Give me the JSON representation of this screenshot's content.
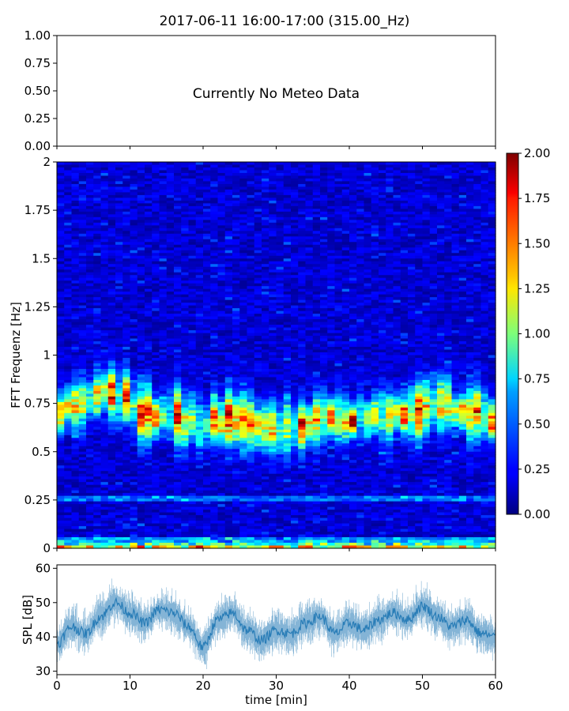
{
  "chart_data": [
    {
      "type": "text",
      "panel": "meteo",
      "title": "2017-06-11 16:00-17:00 (315.00_Hz)",
      "message": "Currently No Meteo Data",
      "ylim": [
        0,
        1
      ],
      "yticks": [
        "0.00",
        "0.25",
        "0.50",
        "0.75",
        "1.00"
      ]
    },
    {
      "type": "heatmap",
      "panel": "spectrogram",
      "ylabel": "FFT Frequenz [Hz]",
      "xlim": [
        0,
        60
      ],
      "ylim": [
        0,
        2
      ],
      "yticks": [
        "0",
        "0.25",
        "0.5",
        "0.75",
        "1",
        "1.25",
        "1.5",
        "1.75",
        "2"
      ],
      "colormap": "jet",
      "colorbar": {
        "vmin": 0,
        "vmax": 2,
        "ticks": [
          "0.00",
          "0.25",
          "0.50",
          "0.75",
          "1.00",
          "1.25",
          "1.50",
          "1.75",
          "2.00"
        ]
      },
      "band_ridge": [
        {
          "t": 0,
          "f": 0.68
        },
        {
          "t": 3,
          "f": 0.76
        },
        {
          "t": 6,
          "f": 0.8
        },
        {
          "t": 9,
          "f": 0.78
        },
        {
          "t": 12,
          "f": 0.7
        },
        {
          "t": 16,
          "f": 0.68
        },
        {
          "t": 20,
          "f": 0.65
        },
        {
          "t": 24,
          "f": 0.66
        },
        {
          "t": 28,
          "f": 0.62
        },
        {
          "t": 32,
          "f": 0.62
        },
        {
          "t": 36,
          "f": 0.66
        },
        {
          "t": 40,
          "f": 0.67
        },
        {
          "t": 44,
          "f": 0.68
        },
        {
          "t": 48,
          "f": 0.7
        },
        {
          "t": 52,
          "f": 0.76
        },
        {
          "t": 56,
          "f": 0.7
        },
        {
          "t": 60,
          "f": 0.67
        }
      ],
      "low_freq_band_hz": 0.02,
      "secondary_band_hz": 0.26
    },
    {
      "type": "area",
      "panel": "spl",
      "xlabel": "time [min]",
      "ylabel": "SPL [dB]",
      "xlim": [
        0,
        60
      ],
      "ylim": [
        29,
        61
      ],
      "xticks": [
        "0",
        "10",
        "20",
        "30",
        "40",
        "50",
        "60"
      ],
      "yticks": [
        "30",
        "40",
        "50",
        "60"
      ],
      "color": "#1f77b4",
      "series": [
        {
          "x": [
            0,
            2,
            4,
            6,
            8,
            10,
            12,
            14,
            16,
            18,
            20,
            22,
            24,
            26,
            28,
            30,
            32,
            34,
            36,
            38,
            40,
            42,
            44,
            46,
            48,
            50,
            52,
            54,
            56,
            58,
            60
          ],
          "values": [
            38,
            43,
            41,
            46,
            50,
            47,
            44,
            48,
            47,
            43,
            37,
            45,
            47,
            42,
            39,
            42,
            41,
            44,
            46,
            41,
            44,
            42,
            45,
            47,
            45,
            49,
            46,
            43,
            45,
            41,
            40
          ]
        }
      ]
    }
  ]
}
